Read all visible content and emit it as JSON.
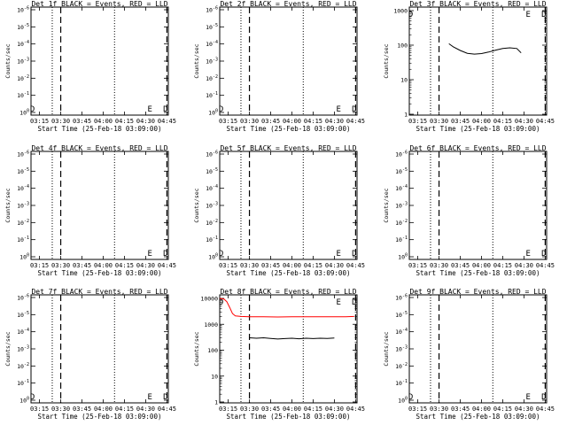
{
  "colors": {
    "events": "#000000",
    "lld": "#ff0000",
    "background": "#ffffff"
  },
  "chart_data": [
    {
      "type": "line",
      "title": "Det 1f BLACK = Events, RED = LLD",
      "xlabel": "Start Time (25-Feb-18 03:09:00)",
      "ylabel": "Counts/sec",
      "x_ticks": [
        "03:15",
        "03:30",
        "03:45",
        "04:00",
        "04:15",
        "04:30",
        "04:45"
      ],
      "y_ticks": [
        "10^0",
        "10^-1",
        "10^-2",
        "10^-3",
        "10^-4",
        "10^-5",
        "10^-6"
      ],
      "y_scale": "log",
      "markers": {
        "dotted": [
          "03:24",
          "04:08"
        ],
        "dashed": [
          "03:30",
          "04:45"
        ]
      },
      "annotations": [
        {
          "label": "D",
          "at": "03:10"
        },
        {
          "label": "E",
          "at": "04:33"
        },
        {
          "label": "D",
          "at": "04:44"
        }
      ],
      "series": []
    },
    {
      "type": "line",
      "title": "Det 2f BLACK = Events, RED = LLD",
      "xlabel": "Start Time (25-Feb-18 03:09:00)",
      "ylabel": "Counts/sec",
      "x_ticks": [
        "03:15",
        "03:30",
        "03:45",
        "04:00",
        "04:15",
        "04:30",
        "04:45"
      ],
      "y_ticks": [
        "10^0",
        "10^-1",
        "10^-2",
        "10^-3",
        "10^-4",
        "10^-5",
        "10^-6"
      ],
      "y_scale": "log",
      "markers": {
        "dotted": [
          "03:24",
          "04:08"
        ],
        "dashed": [
          "03:30",
          "04:45"
        ]
      },
      "annotations": [
        {
          "label": "D",
          "at": "03:10"
        },
        {
          "label": "E",
          "at": "04:33"
        },
        {
          "label": "D",
          "at": "04:44"
        }
      ],
      "series": []
    },
    {
      "type": "line",
      "title": "Det 3f BLACK = Events, RED = LLD",
      "xlabel": "Start Time (25-Feb-18 03:09:00)",
      "ylabel": "Counts/sec",
      "x_ticks": [
        "03:15",
        "03:30",
        "03:45",
        "04:00",
        "04:15",
        "04:30",
        "04:45"
      ],
      "y_ticks": [
        "1000",
        "100",
        "10",
        "1"
      ],
      "y_scale": "log",
      "ylim": [
        1,
        1000
      ],
      "markers": {
        "dotted": [
          "03:24",
          "04:08"
        ],
        "dashed": [
          "03:30",
          "04:45"
        ]
      },
      "annotations": [
        {
          "label": "D",
          "at": "03:10"
        },
        {
          "label": "E",
          "at": "04:33"
        },
        {
          "label": "D",
          "at": "04:44"
        }
      ],
      "series": [
        {
          "color": "events",
          "x": [
            "03:37",
            "03:40",
            "03:45",
            "03:50",
            "03:55",
            "04:00",
            "04:05",
            "04:10",
            "04:15",
            "04:20",
            "04:25",
            "04:28"
          ],
          "y": [
            110,
            90,
            70,
            58,
            55,
            57,
            63,
            72,
            80,
            84,
            80,
            60
          ]
        }
      ]
    },
    {
      "type": "line",
      "title": "Det 4f BLACK = Events, RED = LLD",
      "xlabel": "Start Time (25-Feb-18 03:09:00)",
      "ylabel": "Counts/sec",
      "x_ticks": [
        "03:15",
        "03:30",
        "03:45",
        "04:00",
        "04:15",
        "04:30",
        "04:45"
      ],
      "y_ticks": [
        "10^0",
        "10^-1",
        "10^-2",
        "10^-3",
        "10^-4",
        "10^-5",
        "10^-6"
      ],
      "y_scale": "log",
      "markers": {
        "dotted": [
          "03:24",
          "04:08"
        ],
        "dashed": [
          "03:30",
          "04:45"
        ]
      },
      "annotations": [
        {
          "label": "E",
          "at": "04:33"
        },
        {
          "label": "D",
          "at": "04:44"
        }
      ],
      "series": []
    },
    {
      "type": "line",
      "title": "Det 5f BLACK = Events, RED = LLD",
      "xlabel": "Start Time (25-Feb-18 03:09:00)",
      "ylabel": "Counts/sec",
      "x_ticks": [
        "03:15",
        "03:30",
        "03:45",
        "04:00",
        "04:15",
        "04:30",
        "04:45"
      ],
      "y_ticks": [
        "10^0",
        "10^-1",
        "10^-2",
        "10^-3",
        "10^-4",
        "10^-5",
        "10^-6"
      ],
      "y_scale": "log",
      "markers": {
        "dotted": [
          "03:24",
          "04:08"
        ],
        "dashed": [
          "03:30",
          "04:45"
        ]
      },
      "annotations": [
        {
          "label": "D",
          "at": "03:10"
        },
        {
          "label": "E",
          "at": "04:33"
        },
        {
          "label": "D",
          "at": "04:44"
        }
      ],
      "series": []
    },
    {
      "type": "line",
      "title": "Det 6f BLACK = Events, RED = LLD",
      "xlabel": "Start Time (25-Feb-18 03:09:00)",
      "ylabel": "Counts/sec",
      "x_ticks": [
        "03:15",
        "03:30",
        "03:45",
        "04:00",
        "04:15",
        "04:30",
        "04:45"
      ],
      "y_ticks": [
        "10^0",
        "10^-1",
        "10^-2",
        "10^-3",
        "10^-4",
        "10^-5",
        "10^-6"
      ],
      "y_scale": "log",
      "markers": {
        "dotted": [
          "03:24",
          "04:08"
        ],
        "dashed": [
          "03:30",
          "04:45"
        ]
      },
      "annotations": [
        {
          "label": "E",
          "at": "04:33"
        },
        {
          "label": "D",
          "at": "04:44"
        }
      ],
      "series": []
    },
    {
      "type": "line",
      "title": "Det 7f BLACK = Events, RED = LLD",
      "xlabel": "Start Time (25-Feb-18 03:09:00)",
      "ylabel": "Counts/sec",
      "x_ticks": [
        "03:15",
        "03:30",
        "03:45",
        "04:00",
        "04:15",
        "04:30",
        "04:45"
      ],
      "y_ticks": [
        "10^0",
        "10^-1",
        "10^-2",
        "10^-3",
        "10^-4",
        "10^-5",
        "10^-6"
      ],
      "y_scale": "log",
      "markers": {
        "dotted": [
          "03:24",
          "04:08"
        ],
        "dashed": [
          "03:30",
          "04:45"
        ]
      },
      "annotations": [
        {
          "label": "D",
          "at": "03:10"
        },
        {
          "label": "E",
          "at": "04:33"
        },
        {
          "label": "D",
          "at": "04:44"
        }
      ],
      "series": []
    },
    {
      "type": "line",
      "title": "Det 8f BLACK = Events, RED = LLD",
      "xlabel": "Start Time (25-Feb-18 03:09:00)",
      "ylabel": "Counts/sec",
      "x_ticks": [
        "03:15",
        "03:30",
        "03:45",
        "04:00",
        "04:15",
        "04:30",
        "04:45"
      ],
      "y_ticks": [
        "10000",
        "1000",
        "100",
        "10",
        "1"
      ],
      "y_scale": "log",
      "ylim": [
        1,
        10000
      ],
      "markers": {
        "dotted": [
          "03:24",
          "04:08"
        ],
        "dashed": [
          "03:30",
          "04:45"
        ]
      },
      "annotations": [
        {
          "label": "D",
          "at": "03:10"
        },
        {
          "label": "E",
          "at": "04:33"
        },
        {
          "label": "D",
          "at": "04:44"
        }
      ],
      "series": [
        {
          "color": "lld",
          "x": [
            "03:09",
            "03:12",
            "03:14",
            "03:16",
            "03:18",
            "03:20",
            "03:24",
            "03:30",
            "03:40",
            "03:50",
            "04:00",
            "04:10",
            "04:20",
            "04:30",
            "04:34",
            "04:38",
            "04:44"
          ],
          "y": [
            10000,
            9500,
            7500,
            4500,
            2600,
            2100,
            2000,
            1950,
            1950,
            1920,
            1950,
            1940,
            1950,
            1960,
            1960,
            1950,
            2000
          ]
        },
        {
          "color": "events",
          "x": [
            "03:30",
            "03:35",
            "03:40",
            "03:45",
            "03:50",
            "03:55",
            "04:00",
            "04:05",
            "04:10",
            "04:15",
            "04:20",
            "04:25",
            "04:30"
          ],
          "y": [
            300,
            290,
            300,
            285,
            270,
            280,
            290,
            275,
            290,
            280,
            290,
            285,
            295
          ]
        }
      ]
    },
    {
      "type": "line",
      "title": "Det 9f BLACK = Events, RED = LLD",
      "xlabel": "Start Time (25-Feb-18 03:09:00)",
      "ylabel": "Counts/sec",
      "x_ticks": [
        "03:15",
        "03:30",
        "03:45",
        "04:00",
        "04:15",
        "04:30",
        "04:45"
      ],
      "y_ticks": [
        "10^0",
        "10^-1",
        "10^-2",
        "10^-3",
        "10^-4",
        "10^-5",
        "10^-6"
      ],
      "y_scale": "log",
      "markers": {
        "dotted": [
          "03:24",
          "04:08"
        ],
        "dashed": [
          "03:30",
          "04:45"
        ]
      },
      "annotations": [
        {
          "label": "D",
          "at": "03:10"
        },
        {
          "label": "E",
          "at": "04:33"
        },
        {
          "label": "D",
          "at": "04:44"
        }
      ],
      "series": []
    }
  ]
}
